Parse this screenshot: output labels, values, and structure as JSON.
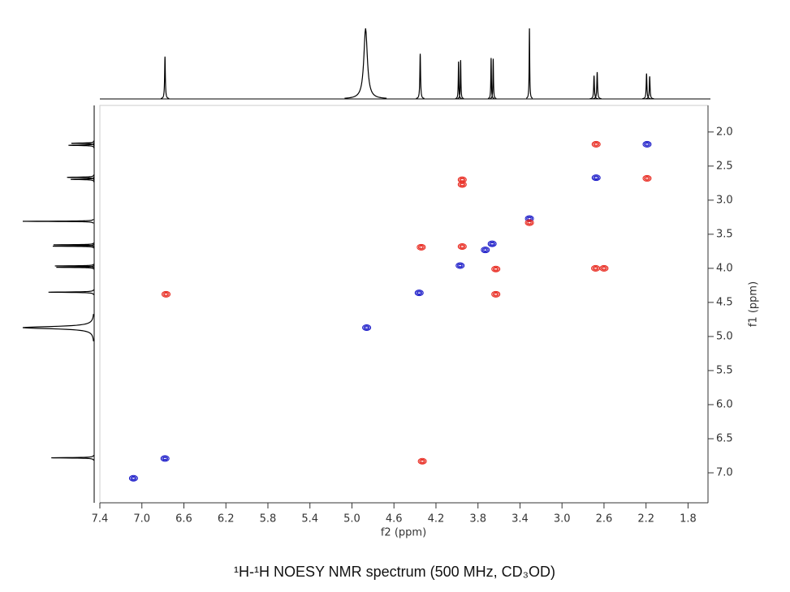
{
  "chart_data": {
    "type": "scatter",
    "caption": "¹H-¹H NOESY NMR spectrum (500 MHz, CD₃OD)",
    "xlabel": "f2 (ppm)",
    "ylabel": "f1 (ppm)",
    "xlim": [
      7.4,
      1.61
    ],
    "ylim": [
      1.61,
      7.44
    ],
    "xticks": [
      7.4,
      {
        "value": 7,
        "label": "7.0"
      },
      6.6,
      6.2,
      5.8,
      5.4,
      {
        "value": 5,
        "label": "5.0"
      },
      4.6,
      4.2,
      3.8,
      3.4,
      {
        "value": 3,
        "label": "3.0"
      },
      2.6,
      2.2,
      1.8
    ],
    "yticks": [
      {
        "value": 2,
        "label": "2.0"
      },
      2.5,
      {
        "value": 3,
        "label": "3.0"
      },
      3.5,
      {
        "value": 4,
        "label": "4.0"
      },
      4.5,
      {
        "value": 5,
        "label": "5.0"
      },
      5.5,
      {
        "value": 6,
        "label": "6.0"
      },
      6.5,
      {
        "value": 7,
        "label": "7.0"
      }
    ],
    "series": [
      {
        "color": "#1a1ac8",
        "x": [
          2.19,
          2.675,
          3.31,
          3.665,
          3.97,
          4.36,
          4.86,
          6.78,
          7.08,
          3.73
        ],
        "y": [
          2.18,
          2.67,
          3.27,
          3.64,
          3.96,
          4.36,
          4.87,
          6.79,
          7.08,
          3.73
        ]
      },
      {
        "color": "#e8281e",
        "x": [
          2.675,
          2.19,
          3.95,
          3.95,
          4.34,
          3.95,
          3.63,
          3.63,
          2.68,
          2.6,
          6.77,
          4.33,
          3.31
        ],
        "y": [
          2.18,
          2.68,
          2.7,
          2.77,
          3.69,
          3.68,
          4.01,
          4.38,
          4.0,
          4.0,
          4.38,
          6.83,
          3.33
        ]
      }
    ],
    "projection": {
      "color": "#000000",
      "x": [
        6.78,
        4.87,
        4.35,
        3.985,
        3.965,
        3.675,
        3.655,
        3.31,
        2.695,
        2.665,
        2.195,
        2.165
      ],
      "heights": [
        0.6,
        1.0,
        0.64,
        0.53,
        0.55,
        0.58,
        0.57,
        1.0,
        0.33,
        0.38,
        0.36,
        0.32
      ],
      "widths": [
        0.004,
        0.02,
        0.004,
        0.003,
        0.003,
        0.003,
        0.003,
        0.003,
        0.004,
        0.004,
        0.004,
        0.004
      ]
    }
  }
}
